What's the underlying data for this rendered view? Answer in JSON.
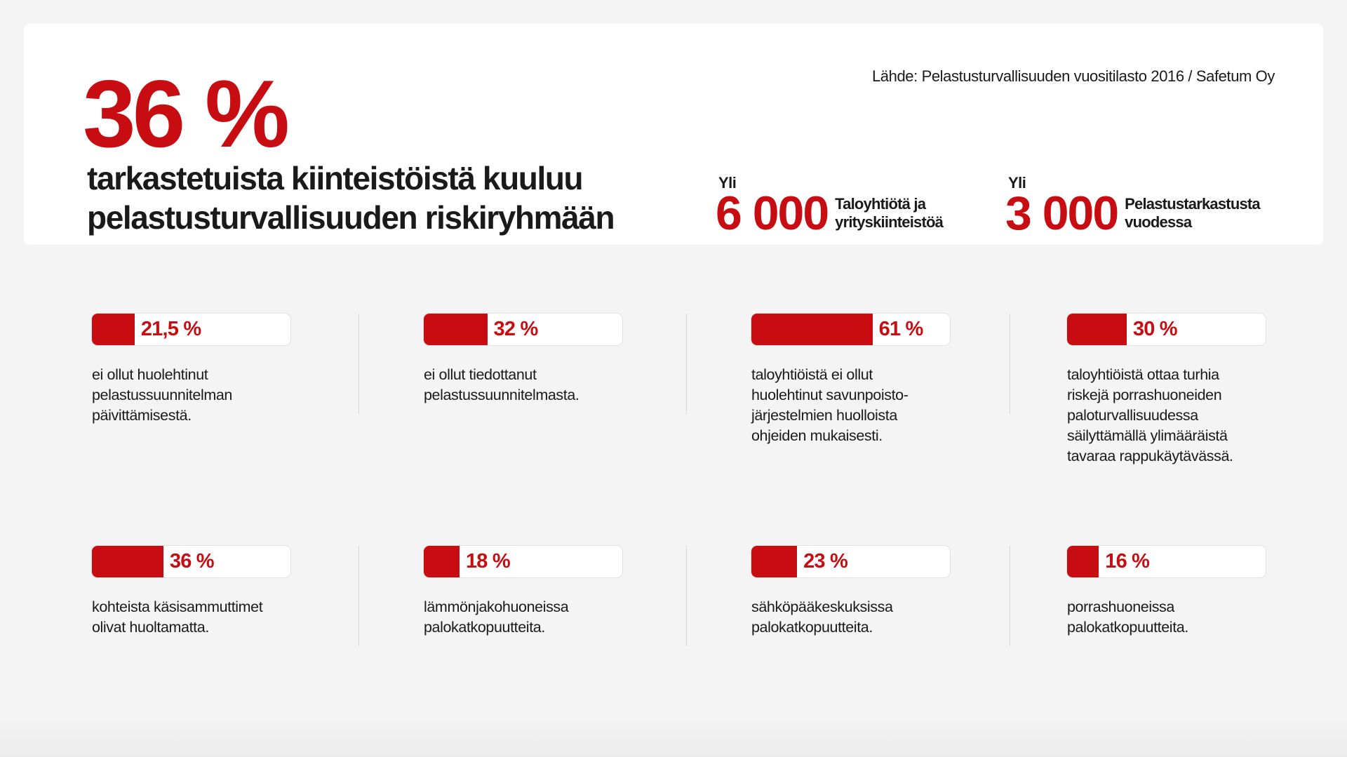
{
  "header": {
    "big_value": "36 %",
    "headline": "tarkastetuista kiinteistöistä kuuluu\npelastusturvallisuuden riskiryhmään",
    "source": "Lähde: Pelastusturvallisuuden vuositilasto 2016 / Safetum Oy",
    "stats": [
      {
        "prefix": "Yli",
        "value": "6 000",
        "label": "Taloyhtiötä ja\nyrityskiinteistöä"
      },
      {
        "prefix": "Yli",
        "value": "3 000",
        "label": "Pelastustarkastusta\nvuodessa"
      }
    ]
  },
  "colors": {
    "accent": "#c80d12",
    "background": "#f4f4f4"
  },
  "items": [
    {
      "percent": 21.5,
      "label": "21,5 %",
      "text": "ei ollut huolehtinut\npelastussuunnitelman\npäivittämisestä."
    },
    {
      "percent": 32,
      "label": "32 %",
      "text": "ei ollut tiedottanut\npelastussuunnitelmasta."
    },
    {
      "percent": 61,
      "label": "61 %",
      "text": "taloyhtiöistä ei ollut\nhuolehtinut savunpoisto-\njärjestelmien huolloista\nohjeiden mukaisesti."
    },
    {
      "percent": 30,
      "label": "30 %",
      "text": "taloyhtiöistä ottaa turhia\nriskejä porrashuoneiden\npaloturvallisuudessa\nsäilyttämällä ylimääräistä\ntavaraa rappukäytävässä."
    },
    {
      "percent": 36,
      "label": "36 %",
      "text": "kohteista käsisammuttimet\nolivat huoltamatta."
    },
    {
      "percent": 18,
      "label": "18 %",
      "text": "lämmönjakohuoneissa\npalokatkopuutteita."
    },
    {
      "percent": 23,
      "label": "23 %",
      "text": "sähköpääkeskuksissa\npalokatkopuutteita."
    },
    {
      "percent": 16,
      "label": "16 %",
      "text": "porrashuoneissa\npalokatkopuutteita."
    }
  ]
}
